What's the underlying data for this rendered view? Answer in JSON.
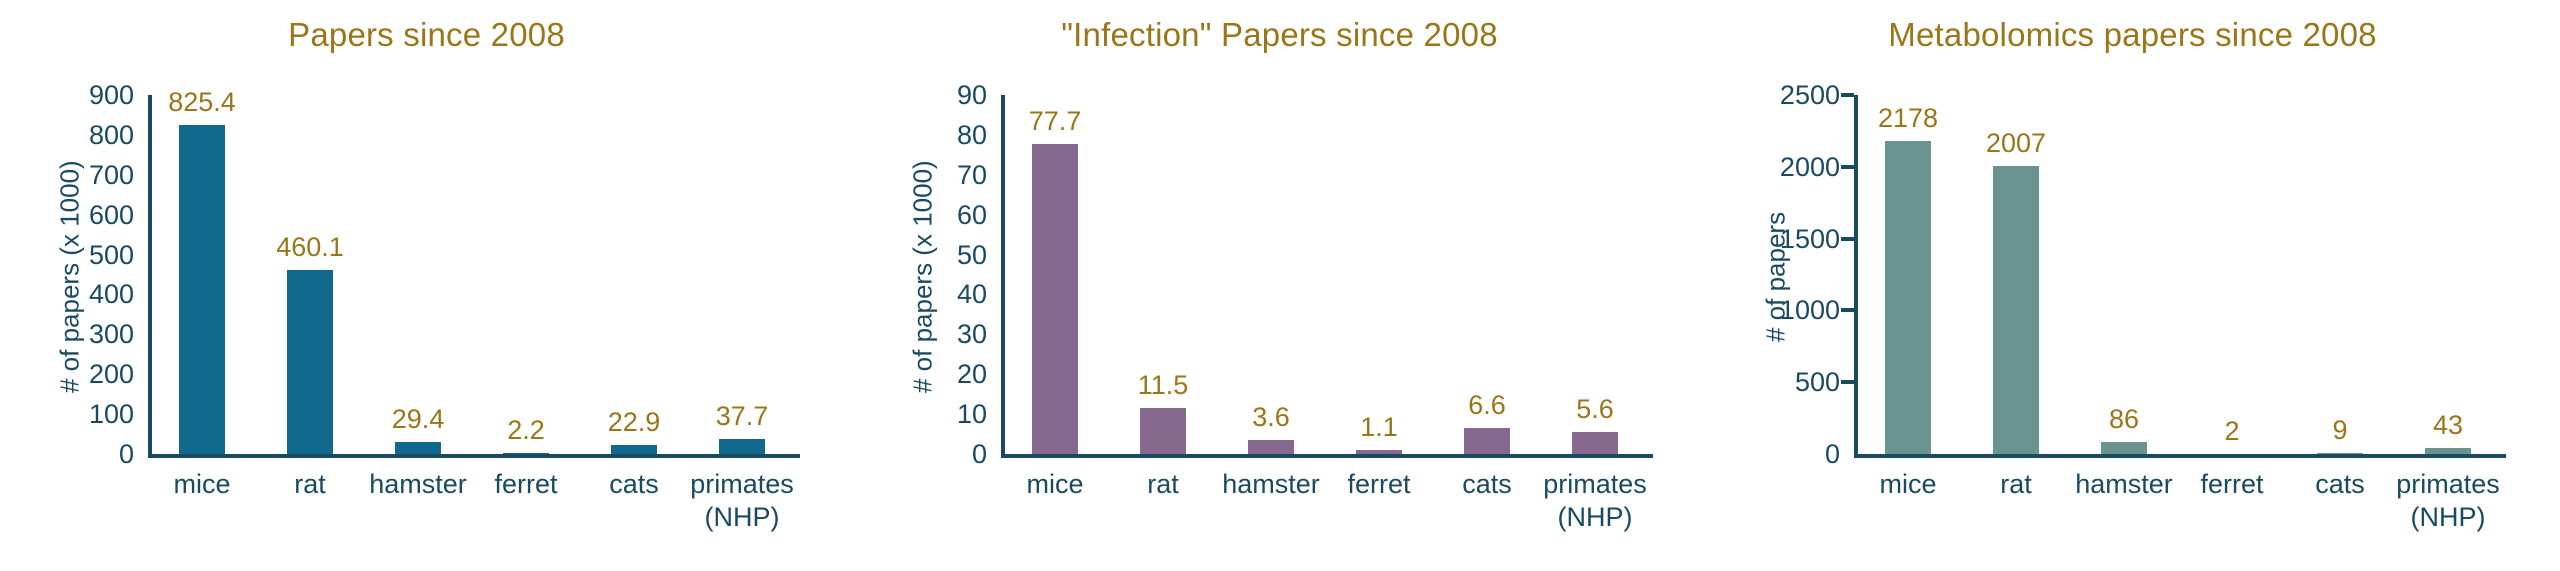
{
  "page": {
    "background": "#ffffff"
  },
  "colors": {
    "axis_and_text": "#1a4a61",
    "accent_gold": "#997619",
    "bar_teal_blue": "#10688c",
    "bar_mauve": "#87698f",
    "bar_sage_teal": "#6a9492"
  },
  "chart_data": [
    {
      "type": "bar",
      "title": "Papers since 2008",
      "xlabel": "",
      "ylabel": "# of papers (x 1000)",
      "ylim": [
        0,
        900
      ],
      "ytick_step": 100,
      "grid": false,
      "legend": false,
      "tick_marks": false,
      "bar_color": "#10688c",
      "categories": [
        "mice",
        "rat",
        "hamster",
        "ferret",
        "cats",
        "primates (NHP)"
      ],
      "values": [
        825.4,
        460.1,
        29.4,
        2.2,
        22.9,
        37.7
      ],
      "value_labels": [
        "825.4",
        "460.1",
        "29.4",
        "2.2",
        "22.9",
        "37.7"
      ]
    },
    {
      "type": "bar",
      "title": "\"Infection\" Papers since 2008",
      "xlabel": "",
      "ylabel": "# of papers (x 1000)",
      "ylim": [
        0,
        90
      ],
      "ytick_step": 10,
      "grid": false,
      "legend": false,
      "tick_marks": false,
      "bar_color": "#87698f",
      "categories": [
        "mice",
        "rat",
        "hamster",
        "ferret",
        "cats",
        "primates (NHP)"
      ],
      "values": [
        77.7,
        11.5,
        3.6,
        1.1,
        6.6,
        5.6
      ],
      "value_labels": [
        "77.7",
        "11.5",
        "3.6",
        "1.1",
        "6.6",
        "5.6"
      ]
    },
    {
      "type": "bar",
      "title": "Metabolomics papers since 2008",
      "xlabel": "",
      "ylabel": "# of papers",
      "ylim": [
        0,
        2500
      ],
      "ytick_step": 500,
      "grid": false,
      "legend": false,
      "tick_marks": true,
      "bar_color": "#6a9492",
      "categories": [
        "mice",
        "rat",
        "hamster",
        "ferret",
        "cats",
        "primates (NHP)"
      ],
      "values": [
        2178,
        2007,
        86,
        2,
        9,
        43
      ],
      "value_labels": [
        "2178",
        "2007",
        "86",
        "2",
        "9",
        "43"
      ]
    }
  ]
}
